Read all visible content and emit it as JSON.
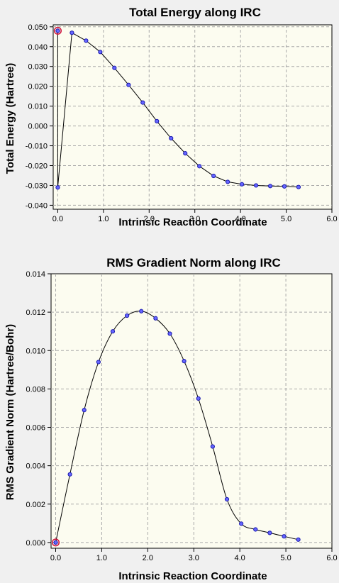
{
  "chart_data": [
    {
      "type": "line",
      "title": "Total Energy along IRC",
      "xlabel": "Intrinsic Reaction Coordinate",
      "ylabel": "Total Energy (Hartree)",
      "xlim": [
        -0.1,
        6.0
      ],
      "ylim": [
        -0.042,
        0.051
      ],
      "xticks": [
        0.0,
        1.0,
        2.0,
        3.0,
        4.0,
        5.0,
        6.0
      ],
      "xtick_labels": [
        "0.0",
        "1.0",
        "2.0",
        "3.0",
        "4.0",
        "5.0",
        "6.0"
      ],
      "yticks": [
        -0.04,
        -0.03,
        -0.02,
        -0.01,
        0.0,
        0.01,
        0.02,
        0.03,
        0.04,
        0.05
      ],
      "ytick_labels": [
        "-0.040",
        "-0.030",
        "-0.020",
        "-0.010",
        "0.000",
        "0.010",
        "0.020",
        "0.030",
        "0.040",
        "0.050"
      ],
      "grid": true,
      "series": [
        {
          "x": [
            0.0,
            0.0,
            0.31,
            0.62,
            0.93,
            1.24,
            1.55,
            1.86,
            2.17,
            2.48,
            2.79,
            3.1,
            3.41,
            3.72,
            4.03,
            4.34,
            4.65,
            4.96,
            5.27
          ],
          "y": [
            0.048,
            -0.031,
            0.047,
            0.043,
            0.0373,
            0.0293,
            0.0207,
            0.0118,
            0.0024,
            -0.0062,
            -0.0138,
            -0.0203,
            -0.0252,
            -0.0282,
            -0.0294,
            -0.03,
            -0.0303,
            -0.0305,
            -0.0308
          ]
        }
      ],
      "highlighted_point": {
        "x": 0.0,
        "y": 0.048
      }
    },
    {
      "type": "line",
      "title": "RMS Gradient Norm along IRC",
      "xlabel": "Intrinsic Reaction Coordinate",
      "ylabel": "RMS Gradient Norm (Hartree/Bohr)",
      "xlim": [
        -0.1,
        6.0
      ],
      "ylim": [
        -0.0003,
        0.014
      ],
      "xticks": [
        0.0,
        1.0,
        2.0,
        3.0,
        4.0,
        5.0,
        6.0
      ],
      "xtick_labels": [
        "0.0",
        "1.0",
        "2.0",
        "3.0",
        "4.0",
        "5.0",
        "6.0"
      ],
      "yticks": [
        0.0,
        0.002,
        0.004,
        0.006,
        0.008,
        0.01,
        0.012,
        0.014
      ],
      "ytick_labels": [
        "0.000",
        "0.002",
        "0.004",
        "0.006",
        "0.008",
        "0.010",
        "0.012",
        "0.014"
      ],
      "grid": true,
      "series": [
        {
          "x": [
            0.0,
            0.31,
            0.62,
            0.93,
            1.24,
            1.55,
            1.86,
            2.17,
            2.48,
            2.79,
            3.1,
            3.41,
            3.72,
            4.03,
            4.34,
            4.65,
            4.96,
            5.27
          ],
          "y": [
            0.0,
            0.00355,
            0.0069,
            0.0094,
            0.011,
            0.01182,
            0.01205,
            0.01168,
            0.01088,
            0.00945,
            0.0075,
            0.005,
            0.00225,
            0.00098,
            0.00068,
            0.0005,
            0.00032,
            0.00015
          ]
        }
      ],
      "highlighted_point": {
        "x": 0.0,
        "y": 0.0
      }
    }
  ]
}
